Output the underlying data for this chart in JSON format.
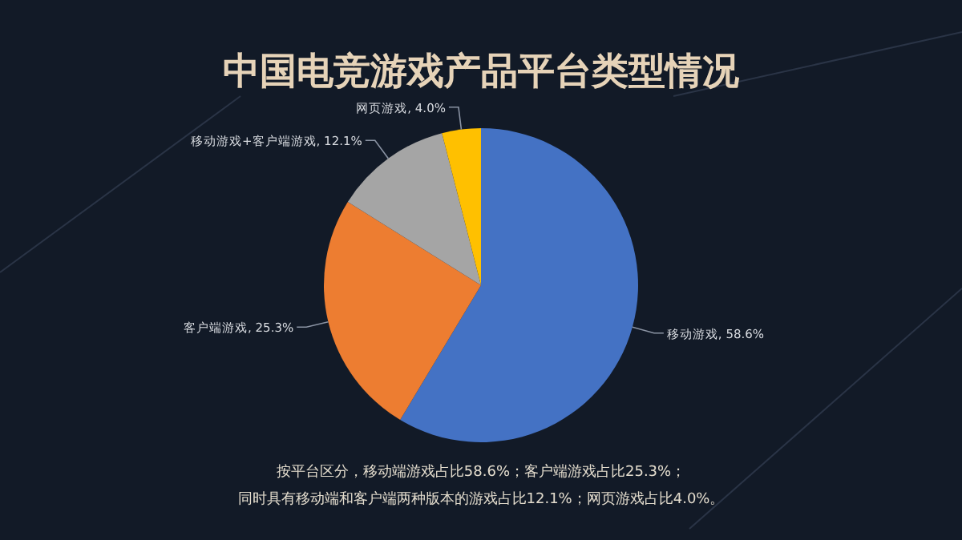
{
  "chart_data": {
    "type": "pie",
    "title": "中国电竞游戏产品平台类型情况",
    "categories": [
      "移动游戏",
      "客户端游戏",
      "移动游戏+客户端游戏",
      "网页游戏"
    ],
    "values": [
      58.6,
      25.3,
      12.1,
      4.0
    ],
    "colors": [
      "#4472c4",
      "#ed7d31",
      "#a5a5a5",
      "#ffc000"
    ],
    "value_labels": [
      "58.6%",
      "25.3%",
      "12.1%",
      "4.0%"
    ],
    "annotations": [
      "按平台区分，移动端游戏占比58.6%；客户端游戏占比25.3%；",
      "同时具有移动端和客户端两种版本的游戏占比12.1%；网页游戏占比4.0%。"
    ]
  }
}
